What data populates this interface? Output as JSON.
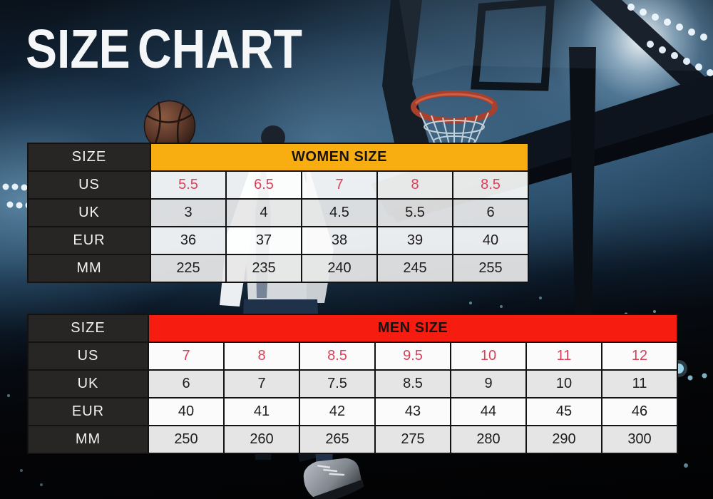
{
  "title": "SIZE CHART",
  "colors": {
    "women_header": "#F8AD10",
    "men_header": "#F71C10",
    "accent_number": "#D9415A",
    "label_cell_bg": "#282525",
    "table_border": "#121212",
    "title_text": "#F4F6F8",
    "value_text": "#1E1C1C"
  },
  "background": {
    "theme": "basketball arena at night",
    "elements": [
      "basketball",
      "basketball-hoop-net",
      "backboard-truss",
      "player-silhouette",
      "stadium-lights",
      "bokeh-lights",
      "basketball-shoe"
    ]
  },
  "tables": [
    {
      "id": "women",
      "corner_label": "SIZE",
      "header_label": "WOMEN SIZE",
      "header_color": "#F8AD10",
      "rows": [
        {
          "label": "US",
          "accent": true,
          "values": [
            "5.5",
            "6.5",
            "7",
            "8",
            "8.5"
          ]
        },
        {
          "label": "UK",
          "accent": false,
          "values": [
            "3",
            "4",
            "4.5",
            "5.5",
            "6"
          ]
        },
        {
          "label": "EUR",
          "accent": false,
          "values": [
            "36",
            "37",
            "38",
            "39",
            "40"
          ]
        },
        {
          "label": "MM",
          "accent": false,
          "values": [
            "225",
            "235",
            "240",
            "245",
            "255"
          ]
        }
      ]
    },
    {
      "id": "men",
      "corner_label": "SIZE",
      "header_label": "MEN SIZE",
      "header_color": "#F71C10",
      "rows": [
        {
          "label": "US",
          "accent": true,
          "values": [
            "7",
            "8",
            "8.5",
            "9.5",
            "10",
            "11",
            "12"
          ]
        },
        {
          "label": "UK",
          "accent": false,
          "values": [
            "6",
            "7",
            "7.5",
            "8.5",
            "9",
            "10",
            "11"
          ]
        },
        {
          "label": "EUR",
          "accent": false,
          "values": [
            "40",
            "41",
            "42",
            "43",
            "44",
            "45",
            "46"
          ]
        },
        {
          "label": "MM",
          "accent": false,
          "values": [
            "250",
            "260",
            "265",
            "275",
            "280",
            "290",
            "300"
          ]
        }
      ]
    }
  ],
  "chart_data": [
    {
      "type": "table",
      "title": "WOMEN SIZE",
      "row_headers": [
        "US",
        "UK",
        "EUR",
        "MM"
      ],
      "rows": [
        [
          5.5,
          6.5,
          7,
          8,
          8.5
        ],
        [
          3,
          4,
          4.5,
          5.5,
          6
        ],
        [
          36,
          37,
          38,
          39,
          40
        ],
        [
          225,
          235,
          240,
          245,
          255
        ]
      ]
    },
    {
      "type": "table",
      "title": "MEN SIZE",
      "row_headers": [
        "US",
        "UK",
        "EUR",
        "MM"
      ],
      "rows": [
        [
          7,
          8,
          8.5,
          9.5,
          10,
          11,
          12
        ],
        [
          6,
          7,
          7.5,
          8.5,
          9,
          10,
          11
        ],
        [
          40,
          41,
          42,
          43,
          44,
          45,
          46
        ],
        [
          250,
          260,
          265,
          275,
          280,
          290,
          300
        ]
      ]
    }
  ]
}
